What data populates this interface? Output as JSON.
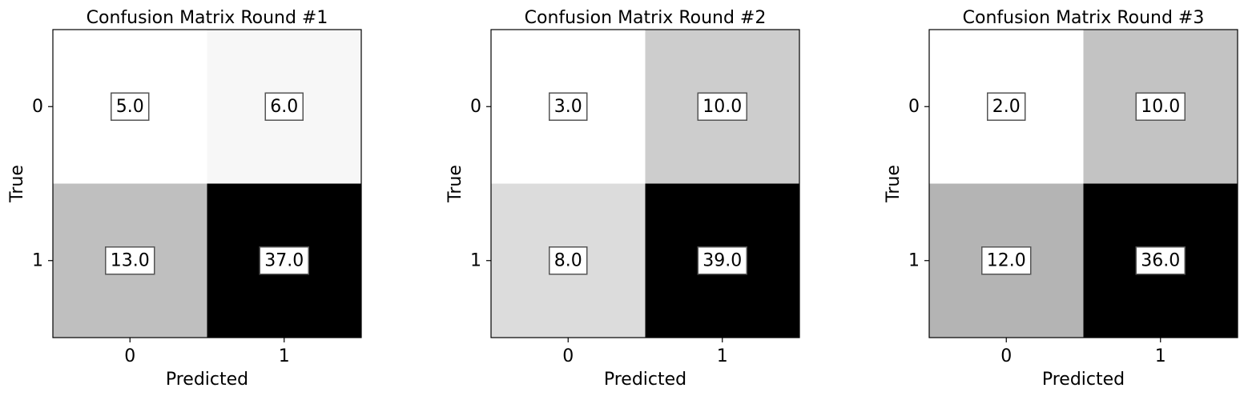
{
  "chart_data": [
    {
      "type": "heatmap",
      "title": "Confusion Matrix Round #1",
      "xlabel": "Predicted",
      "ylabel": "True",
      "x_ticks": [
        "0",
        "1"
      ],
      "y_ticks": [
        "0",
        "1"
      ],
      "matrix": [
        [
          5.0,
          6.0
        ],
        [
          13.0,
          37.0
        ]
      ],
      "cell_labels": [
        [
          "5.0",
          "6.0"
        ],
        [
          "13.0",
          "37.0"
        ]
      ],
      "colormap": "Greys"
    },
    {
      "type": "heatmap",
      "title": "Confusion Matrix Round #2",
      "xlabel": "Predicted",
      "ylabel": "True",
      "x_ticks": [
        "0",
        "1"
      ],
      "y_ticks": [
        "0",
        "1"
      ],
      "matrix": [
        [
          3.0,
          10.0
        ],
        [
          8.0,
          39.0
        ]
      ],
      "cell_labels": [
        [
          "3.0",
          "10.0"
        ],
        [
          "8.0",
          "39.0"
        ]
      ],
      "colormap": "Greys"
    },
    {
      "type": "heatmap",
      "title": "Confusion Matrix Round #3",
      "xlabel": "Predicted",
      "ylabel": "True",
      "x_ticks": [
        "0",
        "1"
      ],
      "y_ticks": [
        "0",
        "1"
      ],
      "matrix": [
        [
          2.0,
          10.0
        ],
        [
          12.0,
          36.0
        ]
      ],
      "cell_labels": [
        [
          "2.0",
          "10.0"
        ],
        [
          "12.0",
          "36.0"
        ]
      ],
      "colormap": "Greys"
    }
  ]
}
